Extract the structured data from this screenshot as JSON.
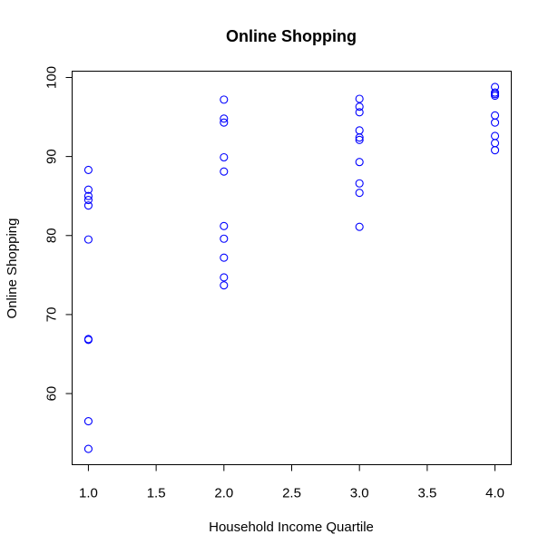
{
  "chart_data": {
    "type": "scatter",
    "title": "Online Shopping",
    "xlabel": "Household Income Quartile",
    "ylabel": "Online Shopping",
    "xlim": [
      0.88,
      4.12
    ],
    "ylim": [
      51,
      100.8
    ],
    "xticks": [
      "1.0",
      "1.5",
      "2.0",
      "2.5",
      "3.0",
      "3.5",
      "4.0"
    ],
    "yticks": [
      "60",
      "70",
      "80",
      "90",
      "100"
    ],
    "marker_color": "#0000ff",
    "marker": "open-circle",
    "grid": false,
    "points": [
      {
        "x": 1,
        "y": 88.3
      },
      {
        "x": 1,
        "y": 85.8
      },
      {
        "x": 1,
        "y": 85.0
      },
      {
        "x": 1,
        "y": 84.5
      },
      {
        "x": 1,
        "y": 83.8
      },
      {
        "x": 1,
        "y": 79.5
      },
      {
        "x": 1,
        "y": 66.9
      },
      {
        "x": 1,
        "y": 66.8
      },
      {
        "x": 1,
        "y": 56.5
      },
      {
        "x": 1,
        "y": 53.0
      },
      {
        "x": 2,
        "y": 97.2
      },
      {
        "x": 2,
        "y": 94.8
      },
      {
        "x": 2,
        "y": 94.3
      },
      {
        "x": 2,
        "y": 89.9
      },
      {
        "x": 2,
        "y": 88.1
      },
      {
        "x": 2,
        "y": 81.2
      },
      {
        "x": 2,
        "y": 79.6
      },
      {
        "x": 2,
        "y": 77.2
      },
      {
        "x": 2,
        "y": 74.7
      },
      {
        "x": 2,
        "y": 73.7
      },
      {
        "x": 3,
        "y": 97.3
      },
      {
        "x": 3,
        "y": 96.3
      },
      {
        "x": 3,
        "y": 95.6
      },
      {
        "x": 3,
        "y": 93.3
      },
      {
        "x": 3,
        "y": 92.4
      },
      {
        "x": 3,
        "y": 92.1
      },
      {
        "x": 3,
        "y": 89.3
      },
      {
        "x": 3,
        "y": 86.6
      },
      {
        "x": 3,
        "y": 85.4
      },
      {
        "x": 3,
        "y": 81.1
      },
      {
        "x": 4,
        "y": 98.8
      },
      {
        "x": 4,
        "y": 98.1
      },
      {
        "x": 4,
        "y": 97.9
      },
      {
        "x": 4,
        "y": 97.7
      },
      {
        "x": 4,
        "y": 95.2
      },
      {
        "x": 4,
        "y": 94.3
      },
      {
        "x": 4,
        "y": 92.6
      },
      {
        "x": 4,
        "y": 91.7
      },
      {
        "x": 4,
        "y": 90.8
      }
    ]
  }
}
